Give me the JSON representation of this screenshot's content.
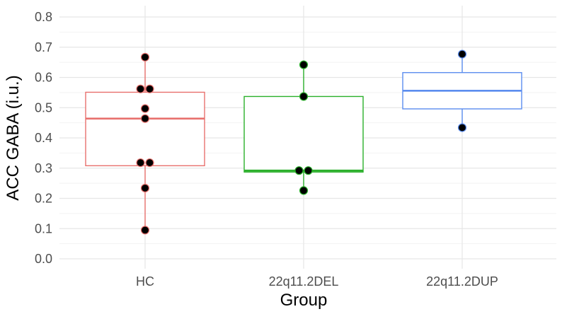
{
  "chart_data": {
    "type": "box",
    "xlabel": "Group",
    "ylabel": "ACC GABA (i.u.)",
    "ylim": [
      0,
      0.8
    ],
    "yticks": [
      "0.0",
      "0.1",
      "0.2",
      "0.3",
      "0.4",
      "0.5",
      "0.6",
      "0.7",
      "0.8"
    ],
    "categories": [
      "HC",
      "22q11.2DEL",
      "22q11.2DUP"
    ],
    "grid": true,
    "legend": "none",
    "boxes": [
      {
        "category": "HC",
        "color": "#E8716E",
        "q1": 0.308,
        "median": 0.464,
        "q3": 0.551,
        "whisker_low": 0.095,
        "whisker_high": 0.667
      },
      {
        "category": "22q11.2DEL",
        "color": "#2BB02B",
        "q1": 0.287,
        "median": 0.292,
        "q3": 0.537,
        "whisker_low": 0.226,
        "whisker_high": 0.642
      },
      {
        "category": "22q11.2DUP",
        "color": "#5B8DEF",
        "q1": 0.496,
        "median": 0.556,
        "q3": 0.616,
        "whisker_low": 0.434,
        "whisker_high": 0.677
      }
    ],
    "points": [
      {
        "category": "HC",
        "values": [
          0.667,
          0.562,
          0.562,
          0.497,
          0.464,
          0.318,
          0.318,
          0.234,
          0.095
        ]
      },
      {
        "category": "22q11.2DEL",
        "values": [
          0.642,
          0.537,
          0.292,
          0.292,
          0.226
        ]
      },
      {
        "category": "22q11.2DUP",
        "values": [
          0.677,
          0.434
        ]
      }
    ]
  }
}
